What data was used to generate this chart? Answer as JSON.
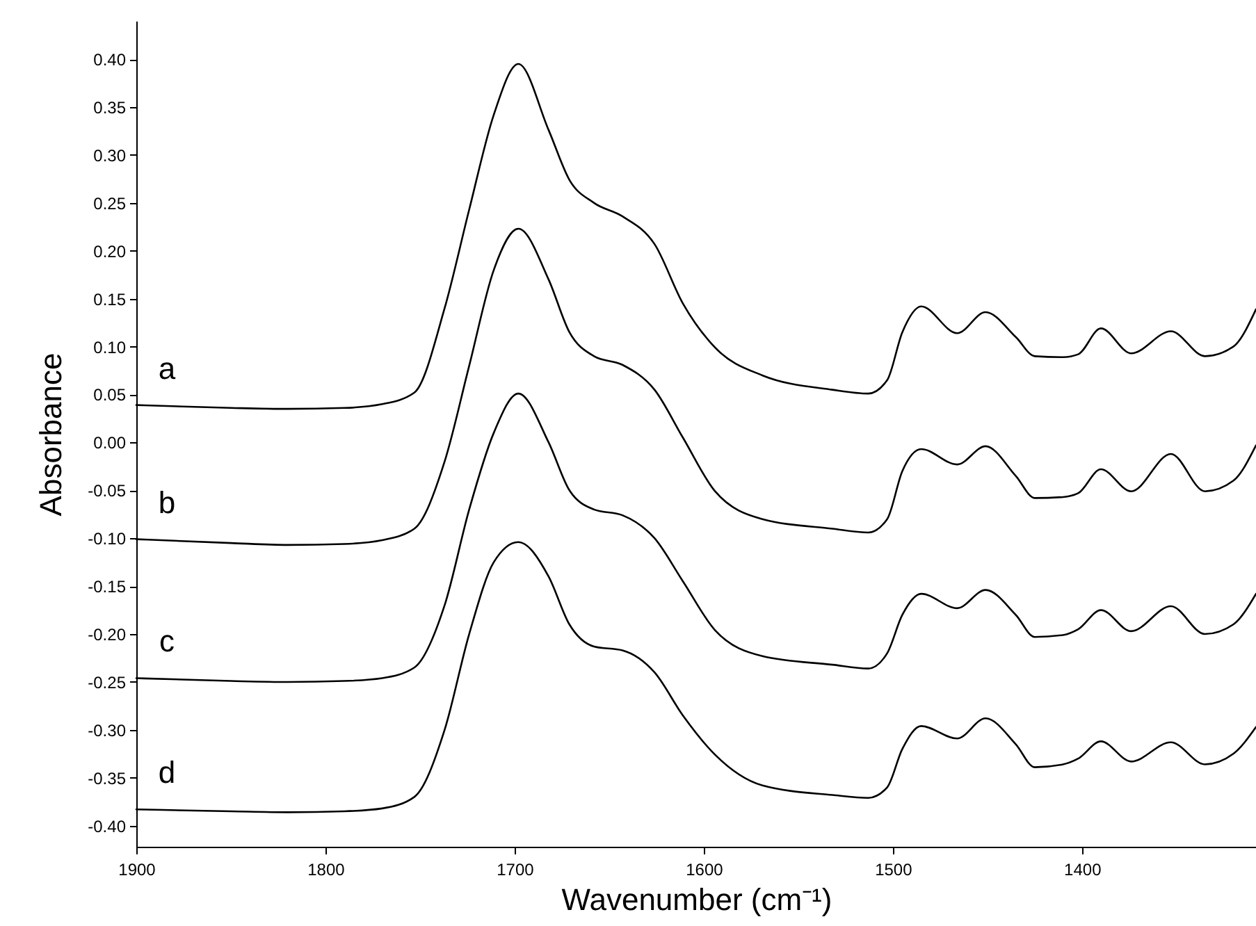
{
  "chart_data": {
    "type": "line",
    "xlabel": "Wavenumber (cm⁻¹)",
    "ylabel": "Absorbance",
    "x": [
      1900,
      1850,
      1820,
      1790,
      1770,
      1753,
      1737,
      1724,
      1711,
      1698,
      1682,
      1671,
      1658,
      1643,
      1626,
      1611,
      1594,
      1569,
      1532,
      1513,
      1503,
      1495,
      1485,
      1466,
      1451,
      1435,
      1425,
      1410,
      1402,
      1390,
      1374,
      1353,
      1335,
      1320,
      1308
    ],
    "series": [
      {
        "name": "a",
        "color": "#000000",
        "values": [
          0.039,
          0.036,
          0.035,
          0.036,
          0.04,
          0.052,
          0.14,
          0.243,
          0.342,
          0.395,
          0.326,
          0.274,
          0.25,
          0.236,
          0.207,
          0.145,
          0.099,
          0.07,
          0.055,
          0.051,
          0.065,
          0.115,
          0.142,
          0.114,
          0.136,
          0.11,
          0.09,
          0.089,
          0.092,
          0.119,
          0.093,
          0.116,
          0.09,
          0.1,
          0.139
        ]
      },
      {
        "name": "b",
        "color": "#000000",
        "values": [
          -0.101,
          -0.105,
          -0.107,
          -0.106,
          -0.102,
          -0.09,
          -0.02,
          0.08,
          0.18,
          0.223,
          0.17,
          0.115,
          0.09,
          0.081,
          0.055,
          0.005,
          -0.051,
          -0.08,
          -0.09,
          -0.094,
          -0.08,
          -0.03,
          -0.007,
          -0.023,
          -0.004,
          -0.035,
          -0.058,
          -0.057,
          -0.053,
          -0.028,
          -0.051,
          -0.012,
          -0.051,
          -0.04,
          -0.003
        ]
      },
      {
        "name": "c",
        "color": "#000000",
        "values": [
          -0.246,
          -0.249,
          -0.25,
          -0.249,
          -0.246,
          -0.235,
          -0.17,
          -0.07,
          0.01,
          0.051,
          0.0,
          -0.05,
          -0.07,
          -0.076,
          -0.1,
          -0.145,
          -0.196,
          -0.223,
          -0.232,
          -0.236,
          -0.22,
          -0.18,
          -0.158,
          -0.173,
          -0.154,
          -0.18,
          -0.203,
          -0.201,
          -0.195,
          -0.175,
          -0.197,
          -0.171,
          -0.2,
          -0.19,
          -0.158
        ]
      },
      {
        "name": "d",
        "color": "#000000",
        "values": [
          -0.383,
          -0.385,
          -0.386,
          -0.385,
          -0.382,
          -0.37,
          -0.3,
          -0.2,
          -0.125,
          -0.104,
          -0.14,
          -0.19,
          -0.213,
          -0.217,
          -0.24,
          -0.285,
          -0.326,
          -0.358,
          -0.368,
          -0.371,
          -0.36,
          -0.32,
          -0.296,
          -0.309,
          -0.288,
          -0.315,
          -0.339,
          -0.336,
          -0.33,
          -0.312,
          -0.333,
          -0.313,
          -0.336,
          -0.325,
          -0.297
        ]
      }
    ],
    "xlim": [
      1900,
      1308
    ],
    "xticks": [
      1900,
      1800,
      1700,
      1600,
      1500,
      1400
    ],
    "ylim": [
      -0.422,
      0.44
    ],
    "yticks": [
      {
        "value": -0.4,
        "label": "-0.40"
      },
      {
        "value": -0.35,
        "label": "-0.35"
      },
      {
        "value": -0.3,
        "label": "-0.30"
      },
      {
        "value": -0.25,
        "label": "-0.25"
      },
      {
        "value": -0.2,
        "label": "-0.20"
      },
      {
        "value": -0.15,
        "label": "-0.15"
      },
      {
        "value": -0.1,
        "label": "-0.10"
      },
      {
        "value": -0.05,
        "label": "-0.05"
      },
      {
        "value": 0,
        "label": "0.00"
      },
      {
        "value": 0.05,
        "label": "0.05"
      },
      {
        "value": 0.1,
        "label": "0.10"
      },
      {
        "value": 0.15,
        "label": "0.15"
      },
      {
        "value": 0.2,
        "label": "0.20"
      },
      {
        "value": 0.25,
        "label": "0.25"
      },
      {
        "value": 0.3,
        "label": "0.30"
      },
      {
        "value": 0.35,
        "label": "0.35"
      },
      {
        "value": 0.4,
        "label": "0.40"
      }
    ],
    "grid": false,
    "legend": false,
    "marker": "none",
    "line_style": "solid"
  }
}
